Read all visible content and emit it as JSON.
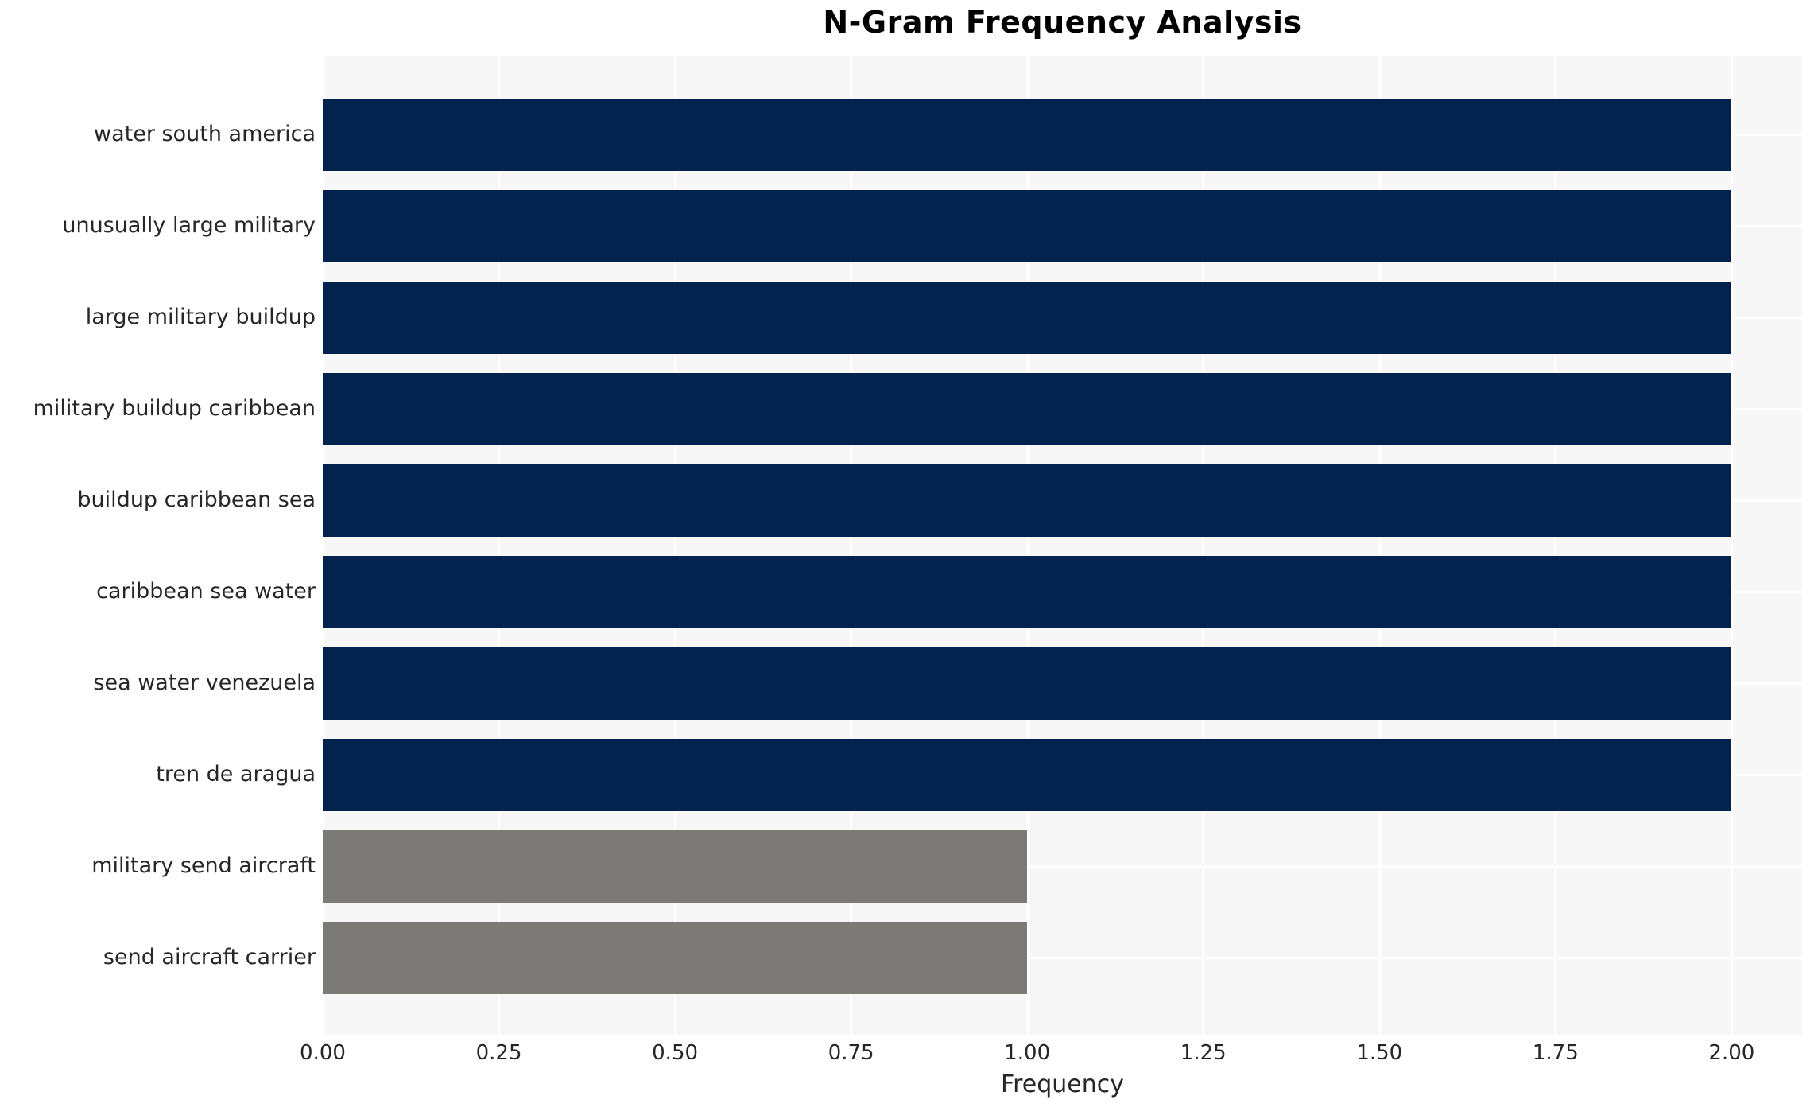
{
  "chart_data": {
    "type": "bar",
    "orientation": "horizontal",
    "title": "N-Gram Frequency Analysis",
    "xlabel": "Frequency",
    "ylabel": "",
    "categories": [
      "water south america",
      "unusually large military",
      "large military buildup",
      "military buildup caribbean",
      "buildup caribbean sea",
      "caribbean sea water",
      "sea water venezuela",
      "tren de aragua",
      "military send aircraft",
      "send aircraft carrier"
    ],
    "values": [
      2,
      2,
      2,
      2,
      2,
      2,
      2,
      2,
      1,
      1
    ],
    "bar_colors": [
      "#03234e",
      "#03234e",
      "#03234e",
      "#03234e",
      "#03234e",
      "#03234e",
      "#03234e",
      "#03234e",
      "#7b7a76",
      "#7b7a76"
    ],
    "xlim": [
      0,
      2.1
    ],
    "xticks": {
      "values": [
        0,
        0.25,
        0.5,
        0.75,
        1.0,
        1.25,
        1.5,
        1.75,
        2.0
      ],
      "labels": [
        "0.00",
        "0.25",
        "0.50",
        "0.75",
        "1.00",
        "1.25",
        "1.50",
        "1.75",
        "2.00"
      ]
    },
    "grid": "on",
    "grid_style": "white gridlines on light gray panel",
    "legend": "none",
    "colors": {
      "primary_bar": "#03234e",
      "secondary_bar": "#7b7a76",
      "panel_background": "#f7f7f7",
      "grid_line": "#ffffff",
      "text": "#262626",
      "title_text": "#000000"
    }
  }
}
